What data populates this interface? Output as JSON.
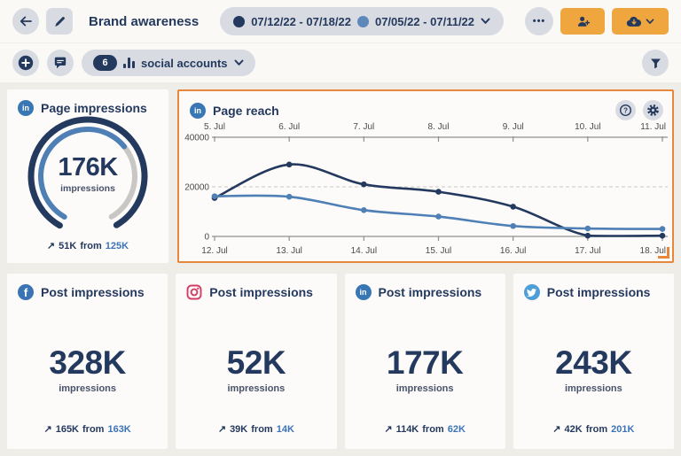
{
  "header": {
    "title": "Brand awareness",
    "date_ranges": [
      {
        "label": "07/12/22 - 07/18/22",
        "color": "#24395E"
      },
      {
        "label": "07/05/22 - 07/11/22",
        "color": "#5E87BA"
      }
    ],
    "more_label": "•••"
  },
  "toolbar": {
    "accounts_count": "6",
    "accounts_label": "social accounts"
  },
  "gauge_card": {
    "network": "linkedin",
    "title": "Page impressions",
    "value": "176K",
    "unit": "impressions",
    "fraction": 0.67,
    "trend": {
      "arrow": "↗",
      "change": "51K",
      "from_word": "from",
      "previous": "125K"
    }
  },
  "chart_card": {
    "network": "linkedin",
    "title": "Page reach"
  },
  "chart_data": {
    "type": "line",
    "title": "Page reach",
    "x_axis_top": [
      "5. Jul",
      "6. Jul",
      "7. Jul",
      "8. Jul",
      "9. Jul",
      "10. Jul",
      "11. Jul"
    ],
    "x_axis_bottom": [
      "12. Jul",
      "13. Jul",
      "14. Jul",
      "15. Jul",
      "16. Jul",
      "17. Jul",
      "18. Jul"
    ],
    "ylim": [
      0,
      40000
    ],
    "yticks": [
      0,
      20000,
      40000
    ],
    "grid": "dashed gridline at 20000 only",
    "legend_position": "none",
    "series": [
      {
        "name": "07/12/22 - 07/18/22",
        "color": "#24395E",
        "values": [
          15500,
          29000,
          21000,
          18000,
          12000,
          300,
          300
        ]
      },
      {
        "name": "07/05/22 - 07/11/22",
        "color": "#4E7FB5",
        "values": [
          16200,
          16000,
          10600,
          8000,
          4200,
          3200,
          3000
        ]
      }
    ]
  },
  "post_cards": [
    {
      "network": "facebook",
      "title": "Post impressions",
      "value": "328K",
      "unit": "impressions",
      "trend": {
        "arrow": "↗",
        "change": "165K",
        "from_word": "from",
        "previous": "163K"
      }
    },
    {
      "network": "instagram",
      "title": "Post impressions",
      "value": "52K",
      "unit": "impressions",
      "trend": {
        "arrow": "↗",
        "change": "39K",
        "from_word": "from",
        "previous": "14K"
      }
    },
    {
      "network": "linkedin",
      "title": "Post impressions",
      "value": "177K",
      "unit": "impressions",
      "trend": {
        "arrow": "↗",
        "change": "114K",
        "from_word": "from",
        "previous": "62K"
      }
    },
    {
      "network": "twitter",
      "title": "Post impressions",
      "value": "243K",
      "unit": "impressions",
      "trend": {
        "arrow": "↗",
        "change": "42K",
        "from_word": "from",
        "previous": "201K"
      }
    }
  ],
  "icons": {
    "linkedin_glyph": "in",
    "facebook_glyph": "f",
    "help_glyph": "?"
  }
}
